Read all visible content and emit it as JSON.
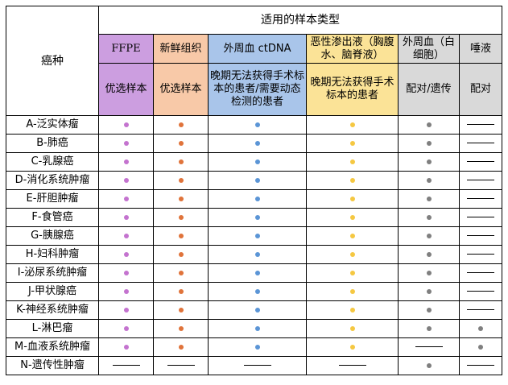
{
  "header": {
    "cancer_label": "癌种",
    "group_label": "适用的样本类型"
  },
  "columns": [
    {
      "key": "ffpe",
      "type_label": "FFPE",
      "desc": "优选样本",
      "color": "#cc9ee0",
      "dot_color": "#c473cf",
      "serif": true
    },
    {
      "key": "fresh",
      "type_label": "新鲜组织",
      "desc": "优选样本",
      "color": "#f8c9a8",
      "dot_color": "#e0733a",
      "serif": false
    },
    {
      "key": "blood",
      "type_label": "外周血 ctDNA",
      "desc": "晚期无法获得手术标本的患者/需要动态检测的患者",
      "color": "#a9c5ea",
      "dot_color": "#5b95d6",
      "serif": false
    },
    {
      "key": "fluid",
      "type_label": "恶性渗出液（胸腹水、脑脊液）",
      "desc": "晚期无法获得手术标本的患者",
      "color": "#fbe397",
      "dot_color": "#f5c842",
      "serif": false
    },
    {
      "key": "white",
      "type_label": "外周血（白细胞）",
      "desc": "配对/遗传",
      "color": "#d9d9d9",
      "dot_color": "#7f7f7f",
      "serif": false
    },
    {
      "key": "saliva",
      "type_label": "唾液",
      "desc": "配对",
      "color": "#d9d9d9",
      "dot_color": "#7f7f7f",
      "serif": false
    }
  ],
  "rows": [
    {
      "name": "A-泛实体瘤",
      "cells": [
        "dot",
        "dot",
        "dot",
        "dot",
        "dot",
        "dash"
      ]
    },
    {
      "name": "B-肺癌",
      "cells": [
        "dot",
        "dot",
        "dot",
        "dot",
        "dot",
        "dash"
      ]
    },
    {
      "name": "C-乳腺癌",
      "cells": [
        "dot",
        "dot",
        "dot",
        "dot",
        "dot",
        "dash"
      ]
    },
    {
      "name": "D-消化系统肿瘤",
      "cells": [
        "dot",
        "dot",
        "dot",
        "dot",
        "dot",
        "dash"
      ]
    },
    {
      "name": "E-肝胆肿瘤",
      "cells": [
        "dot",
        "dot",
        "dot",
        "dot",
        "dot",
        "dash"
      ]
    },
    {
      "name": "F-食管癌",
      "cells": [
        "dot",
        "dot",
        "dot",
        "dot",
        "dot",
        "dash"
      ]
    },
    {
      "name": "G-胰腺癌",
      "cells": [
        "dot",
        "dot",
        "dot",
        "dot",
        "dot",
        "dash"
      ]
    },
    {
      "name": "H-妇科肿瘤",
      "cells": [
        "dot",
        "dot",
        "dot",
        "dot",
        "dot",
        "dash"
      ]
    },
    {
      "name": "I-泌尿系统肿瘤",
      "cells": [
        "dot",
        "dot",
        "dot",
        "dot",
        "dot",
        "dash"
      ]
    },
    {
      "name": "J-甲状腺癌",
      "cells": [
        "dot",
        "dot",
        "dot",
        "dot",
        "dot",
        "dash"
      ]
    },
    {
      "name": "K-神经系统肿瘤",
      "cells": [
        "dot",
        "dot",
        "dot",
        "dot",
        "dot",
        "dash"
      ]
    },
    {
      "name": "L-淋巴瘤",
      "cells": [
        "dot",
        "dot",
        "dot",
        "dot",
        "dot",
        "dot"
      ]
    },
    {
      "name": "M-血液系统肿瘤",
      "cells": [
        "dot",
        "dot",
        "dot",
        "dot",
        "dash",
        "dot"
      ]
    },
    {
      "name": "N-遗传性肿瘤",
      "cells": [
        "dash",
        "dash",
        "dash",
        "dash",
        "dot",
        "dash"
      ]
    }
  ]
}
